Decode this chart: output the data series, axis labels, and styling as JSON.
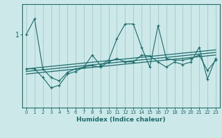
{
  "xlabel": "Humidex (Indice chaleur)",
  "bg_color": "#cce8e8",
  "grid_color": "#aacccc",
  "line_color": "#1a6b6b",
  "x_values": [
    0,
    1,
    2,
    3,
    4,
    5,
    6,
    7,
    8,
    9,
    10,
    11,
    12,
    13,
    14,
    15,
    16,
    17,
    18,
    19,
    20,
    21,
    22,
    23
  ],
  "series1": [
    1.0,
    1.18,
    0.6,
    0.5,
    0.46,
    0.56,
    0.6,
    0.62,
    0.76,
    0.64,
    0.7,
    0.95,
    1.12,
    1.12,
    0.85,
    0.62,
    1.1,
    0.72,
    0.7,
    0.7,
    0.72,
    0.76,
    0.58,
    0.7
  ],
  "series2": [
    0.6,
    0.6,
    0.5,
    0.38,
    0.41,
    0.54,
    0.57,
    0.62,
    0.64,
    0.62,
    0.68,
    0.72,
    0.68,
    0.68,
    0.76,
    0.75,
    0.68,
    0.62,
    0.68,
    0.65,
    0.68,
    0.85,
    0.48,
    0.72
  ],
  "trend1_x": [
    0,
    23
  ],
  "trend1_y": [
    0.6,
    0.82
  ],
  "trend2_x": [
    0,
    23
  ],
  "trend2_y": [
    0.54,
    0.76
  ],
  "trend3_x": [
    0,
    23
  ],
  "trend3_y": [
    0.57,
    0.79
  ],
  "ytick_label": "1",
  "ytick_val": 1.0,
  "ylim": [
    0.15,
    1.35
  ],
  "xlim": [
    -0.5,
    23.5
  ]
}
